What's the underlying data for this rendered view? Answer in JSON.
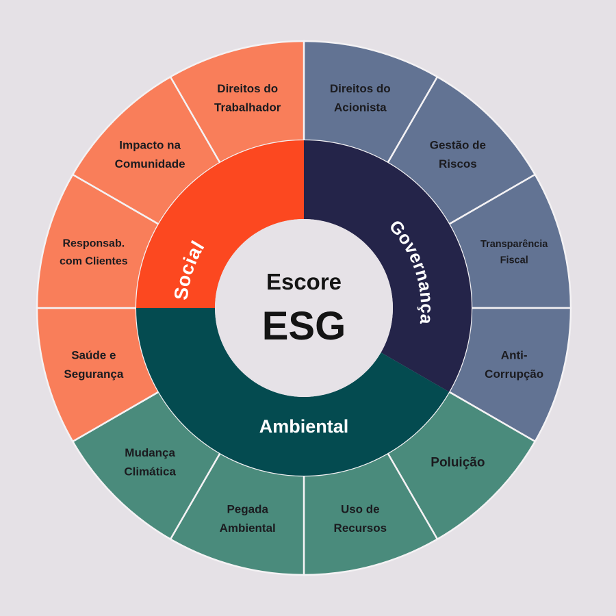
{
  "center": {
    "line1": "Escore",
    "line2": "ESG"
  },
  "colors": {
    "background": "#e5e1e6",
    "center_fill": "#e6e2e7",
    "divider": "#f4f2f4",
    "outer_text": "#1b1b1f",
    "center_text": "#141414"
  },
  "pillars": [
    {
      "id": "social",
      "label": "Social",
      "ring_color": "#fc4820",
      "outer_color": "#f97e5a",
      "segments": [
        {
          "id": "direitos-do-trabalhador",
          "lines": [
            "Direitos  do",
            "Trabalhador"
          ]
        },
        {
          "id": "impacto-na-comunidade",
          "lines": [
            "Impacto na",
            "Comunidade"
          ]
        },
        {
          "id": "responsab-com-clientes",
          "lines": [
            "Responsab.",
            "com Clientes"
          ]
        },
        {
          "id": "saude-e-seguranca",
          "lines": [
            "Saúde e",
            "Segurança"
          ]
        }
      ]
    },
    {
      "id": "governanca",
      "label": "Governança",
      "ring_color": "#242449",
      "outer_color": "#627393",
      "segments": [
        {
          "id": "direitos-do-acionista",
          "lines": [
            "Direitos  do",
            "Acionista"
          ]
        },
        {
          "id": "gestao-de-riscos",
          "lines": [
            "Gestão de",
            "Riscos"
          ]
        },
        {
          "id": "transparencia-fiscal",
          "lines": [
            "Transparência",
            "Fiscal"
          ]
        },
        {
          "id": "anti-corrupcao",
          "lines": [
            "Anti-",
            "Corrupção"
          ]
        }
      ]
    },
    {
      "id": "ambiental",
      "label": "Ambiental",
      "ring_color": "#044b50",
      "outer_color": "#4a8b7c",
      "segments": [
        {
          "id": "poluicao",
          "lines": [
            "Poluição"
          ]
        },
        {
          "id": "uso-de-recursos",
          "lines": [
            "Uso de",
            "Recursos"
          ]
        },
        {
          "id": "pegada-ambiental",
          "lines": [
            "Pegada",
            "Ambiental"
          ]
        },
        {
          "id": "mudanca-climatica",
          "lines": [
            "Mudança",
            "Climática"
          ]
        }
      ]
    }
  ]
}
